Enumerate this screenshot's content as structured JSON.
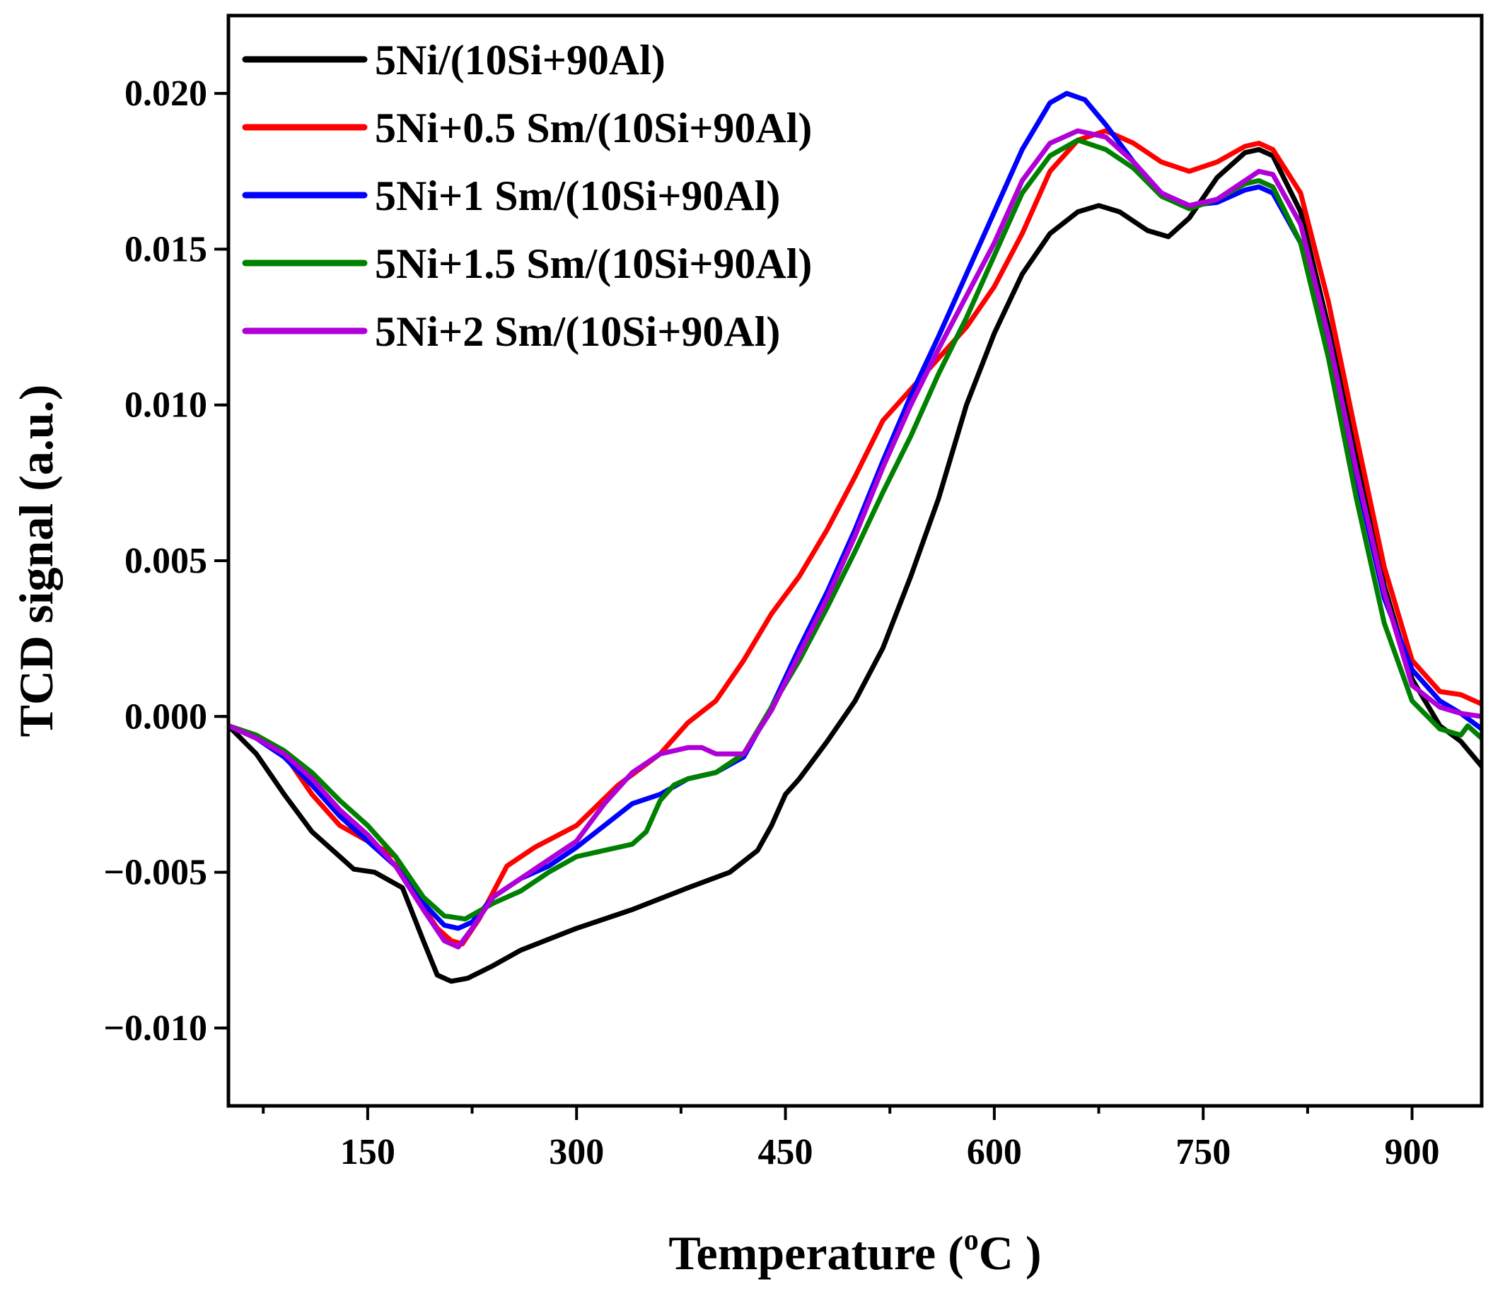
{
  "chart_data": {
    "type": "line",
    "title": "",
    "xlabel": "Temperature (",
    "xlabel_sup": "o",
    "xlabel_suffix": "C )",
    "ylabel": "TCD signal (a.u.)",
    "xlim": [
      50,
      950
    ],
    "ylim": [
      -0.0125,
      0.0225
    ],
    "xticks": [
      150,
      300,
      450,
      600,
      750,
      900
    ],
    "xtick_labels": [
      "150",
      "300",
      "450",
      "600",
      "750",
      "900"
    ],
    "yticks": [
      -0.01,
      -0.005,
      0.0,
      0.005,
      0.01,
      0.015,
      0.02
    ],
    "ytick_labels": [
      "−0.010",
      "−0.005",
      "0.000",
      "0.005",
      "0.010",
      "0.015",
      "0.020"
    ],
    "legend_position": "top-left",
    "series": [
      {
        "name": "5Ni/(10Si+90Al)",
        "color": "#000000",
        "x": [
          50,
          70,
          90,
          110,
          130,
          140,
          155,
          175,
          190,
          200,
          210,
          222,
          240,
          260,
          300,
          340,
          380,
          410,
          430,
          440,
          450,
          460,
          480,
          500,
          520,
          540,
          560,
          580,
          600,
          620,
          640,
          660,
          675,
          690,
          710,
          725,
          740,
          760,
          780,
          790,
          800,
          820,
          840,
          860,
          880,
          900,
          920,
          935,
          950
        ],
        "y": [
          -0.0003,
          -0.0012,
          -0.0025,
          -0.0037,
          -0.0045,
          -0.0049,
          -0.005,
          -0.0055,
          -0.0072,
          -0.0083,
          -0.0085,
          -0.0084,
          -0.008,
          -0.0075,
          -0.0068,
          -0.0062,
          -0.0055,
          -0.005,
          -0.0043,
          -0.0035,
          -0.0025,
          -0.002,
          -0.0008,
          0.0005,
          0.0022,
          0.0045,
          0.007,
          0.01,
          0.0123,
          0.0142,
          0.0155,
          0.0162,
          0.0164,
          0.0162,
          0.0156,
          0.0154,
          0.016,
          0.0173,
          0.0181,
          0.0182,
          0.018,
          0.0162,
          0.0125,
          0.0083,
          0.0042,
          0.0012,
          -0.0003,
          -0.0008,
          -0.0016
        ]
      },
      {
        "name": "5Ni+0.5 Sm/(10Si+90Al)",
        "color": "#ff0000",
        "x": [
          50,
          70,
          90,
          110,
          130,
          150,
          170,
          185,
          200,
          210,
          218,
          230,
          250,
          270,
          300,
          330,
          360,
          380,
          400,
          420,
          440,
          460,
          480,
          500,
          520,
          540,
          560,
          580,
          600,
          620,
          640,
          660,
          680,
          700,
          720,
          740,
          760,
          780,
          790,
          800,
          820,
          840,
          860,
          880,
          900,
          920,
          935,
          950
        ],
        "y": [
          -0.0003,
          -0.0006,
          -0.0012,
          -0.0025,
          -0.0035,
          -0.004,
          -0.0045,
          -0.0058,
          -0.0068,
          -0.0072,
          -0.0073,
          -0.0065,
          -0.0048,
          -0.0042,
          -0.0035,
          -0.0022,
          -0.0012,
          -0.0002,
          0.0005,
          0.0018,
          0.0033,
          0.0045,
          0.006,
          0.0077,
          0.0095,
          0.0105,
          0.0115,
          0.0125,
          0.0138,
          0.0155,
          0.0175,
          0.0185,
          0.0188,
          0.0184,
          0.0178,
          0.0175,
          0.0178,
          0.0183,
          0.0184,
          0.0182,
          0.0168,
          0.0133,
          0.009,
          0.0048,
          0.0018,
          0.0008,
          0.0007,
          0.0004
        ]
      },
      {
        "name": "5Ni+1 Sm/(10Si+90Al)",
        "color": "#0000ff",
        "x": [
          50,
          70,
          90,
          110,
          130,
          150,
          170,
          190,
          205,
          215,
          225,
          240,
          260,
          280,
          300,
          320,
          340,
          360,
          380,
          400,
          420,
          440,
          460,
          480,
          500,
          520,
          540,
          560,
          580,
          600,
          620,
          640,
          652,
          665,
          680,
          700,
          720,
          740,
          760,
          780,
          790,
          800,
          820,
          840,
          860,
          880,
          900,
          920,
          935,
          950
        ],
        "y": [
          -0.0003,
          -0.0007,
          -0.0013,
          -0.0022,
          -0.0032,
          -0.004,
          -0.0048,
          -0.006,
          -0.0067,
          -0.0068,
          -0.0066,
          -0.0058,
          -0.0052,
          -0.0048,
          -0.0042,
          -0.0035,
          -0.0028,
          -0.0025,
          -0.002,
          -0.0018,
          -0.0013,
          0.0003,
          0.0022,
          0.004,
          0.006,
          0.0082,
          0.0103,
          0.0122,
          0.0142,
          0.0162,
          0.0182,
          0.0197,
          0.02,
          0.0198,
          0.019,
          0.0178,
          0.0168,
          0.0164,
          0.0165,
          0.0169,
          0.017,
          0.0168,
          0.0152,
          0.0118,
          0.0077,
          0.0038,
          0.0015,
          0.0005,
          0.0001,
          -0.0004
        ]
      },
      {
        "name": "5Ni+1.5 Sm/(10Si+90Al)",
        "color": "#008000",
        "x": [
          50,
          70,
          90,
          110,
          130,
          150,
          170,
          190,
          205,
          220,
          240,
          260,
          280,
          300,
          320,
          340,
          350,
          360,
          370,
          380,
          400,
          420,
          440,
          460,
          480,
          500,
          520,
          540,
          560,
          580,
          600,
          620,
          640,
          660,
          680,
          700,
          720,
          740,
          760,
          780,
          790,
          800,
          820,
          840,
          860,
          880,
          900,
          920,
          935,
          940,
          950
        ],
        "y": [
          -0.0003,
          -0.0006,
          -0.0011,
          -0.0018,
          -0.0027,
          -0.0035,
          -0.0045,
          -0.0058,
          -0.0064,
          -0.0065,
          -0.006,
          -0.0056,
          -0.005,
          -0.0045,
          -0.0043,
          -0.0041,
          -0.0037,
          -0.0027,
          -0.0022,
          -0.002,
          -0.0018,
          -0.0012,
          0.0003,
          0.0018,
          0.0035,
          0.0053,
          0.0072,
          0.009,
          0.011,
          0.0128,
          0.0148,
          0.0168,
          0.018,
          0.0185,
          0.0182,
          0.0176,
          0.0167,
          0.0163,
          0.0166,
          0.0171,
          0.0172,
          0.017,
          0.0152,
          0.0115,
          0.007,
          0.003,
          0.0005,
          -0.0004,
          -0.0006,
          -0.0003,
          -0.0007
        ]
      },
      {
        "name": "5Ni+2 Sm/(10Si+90Al)",
        "color": "#b000d8",
        "x": [
          50,
          70,
          90,
          110,
          130,
          150,
          170,
          190,
          205,
          215,
          225,
          240,
          260,
          280,
          300,
          320,
          340,
          360,
          380,
          390,
          400,
          420,
          440,
          460,
          480,
          500,
          520,
          540,
          560,
          580,
          600,
          620,
          640,
          660,
          680,
          700,
          720,
          740,
          760,
          780,
          790,
          800,
          820,
          840,
          860,
          880,
          900,
          920,
          935,
          950
        ],
        "y": [
          -0.0003,
          -0.0007,
          -0.0012,
          -0.002,
          -0.003,
          -0.0038,
          -0.0048,
          -0.0062,
          -0.0072,
          -0.0074,
          -0.0068,
          -0.0058,
          -0.0052,
          -0.0046,
          -0.004,
          -0.0028,
          -0.0018,
          -0.0012,
          -0.001,
          -0.001,
          -0.0012,
          -0.0012,
          0.0002,
          0.002,
          0.0038,
          0.0058,
          0.008,
          0.01,
          0.0118,
          0.0135,
          0.0152,
          0.0172,
          0.0184,
          0.0188,
          0.0186,
          0.0178,
          0.0168,
          0.0164,
          0.0166,
          0.0172,
          0.0175,
          0.0174,
          0.0158,
          0.0122,
          0.0079,
          0.004,
          0.001,
          0.0003,
          0.0001,
          0.0
        ]
      }
    ]
  }
}
